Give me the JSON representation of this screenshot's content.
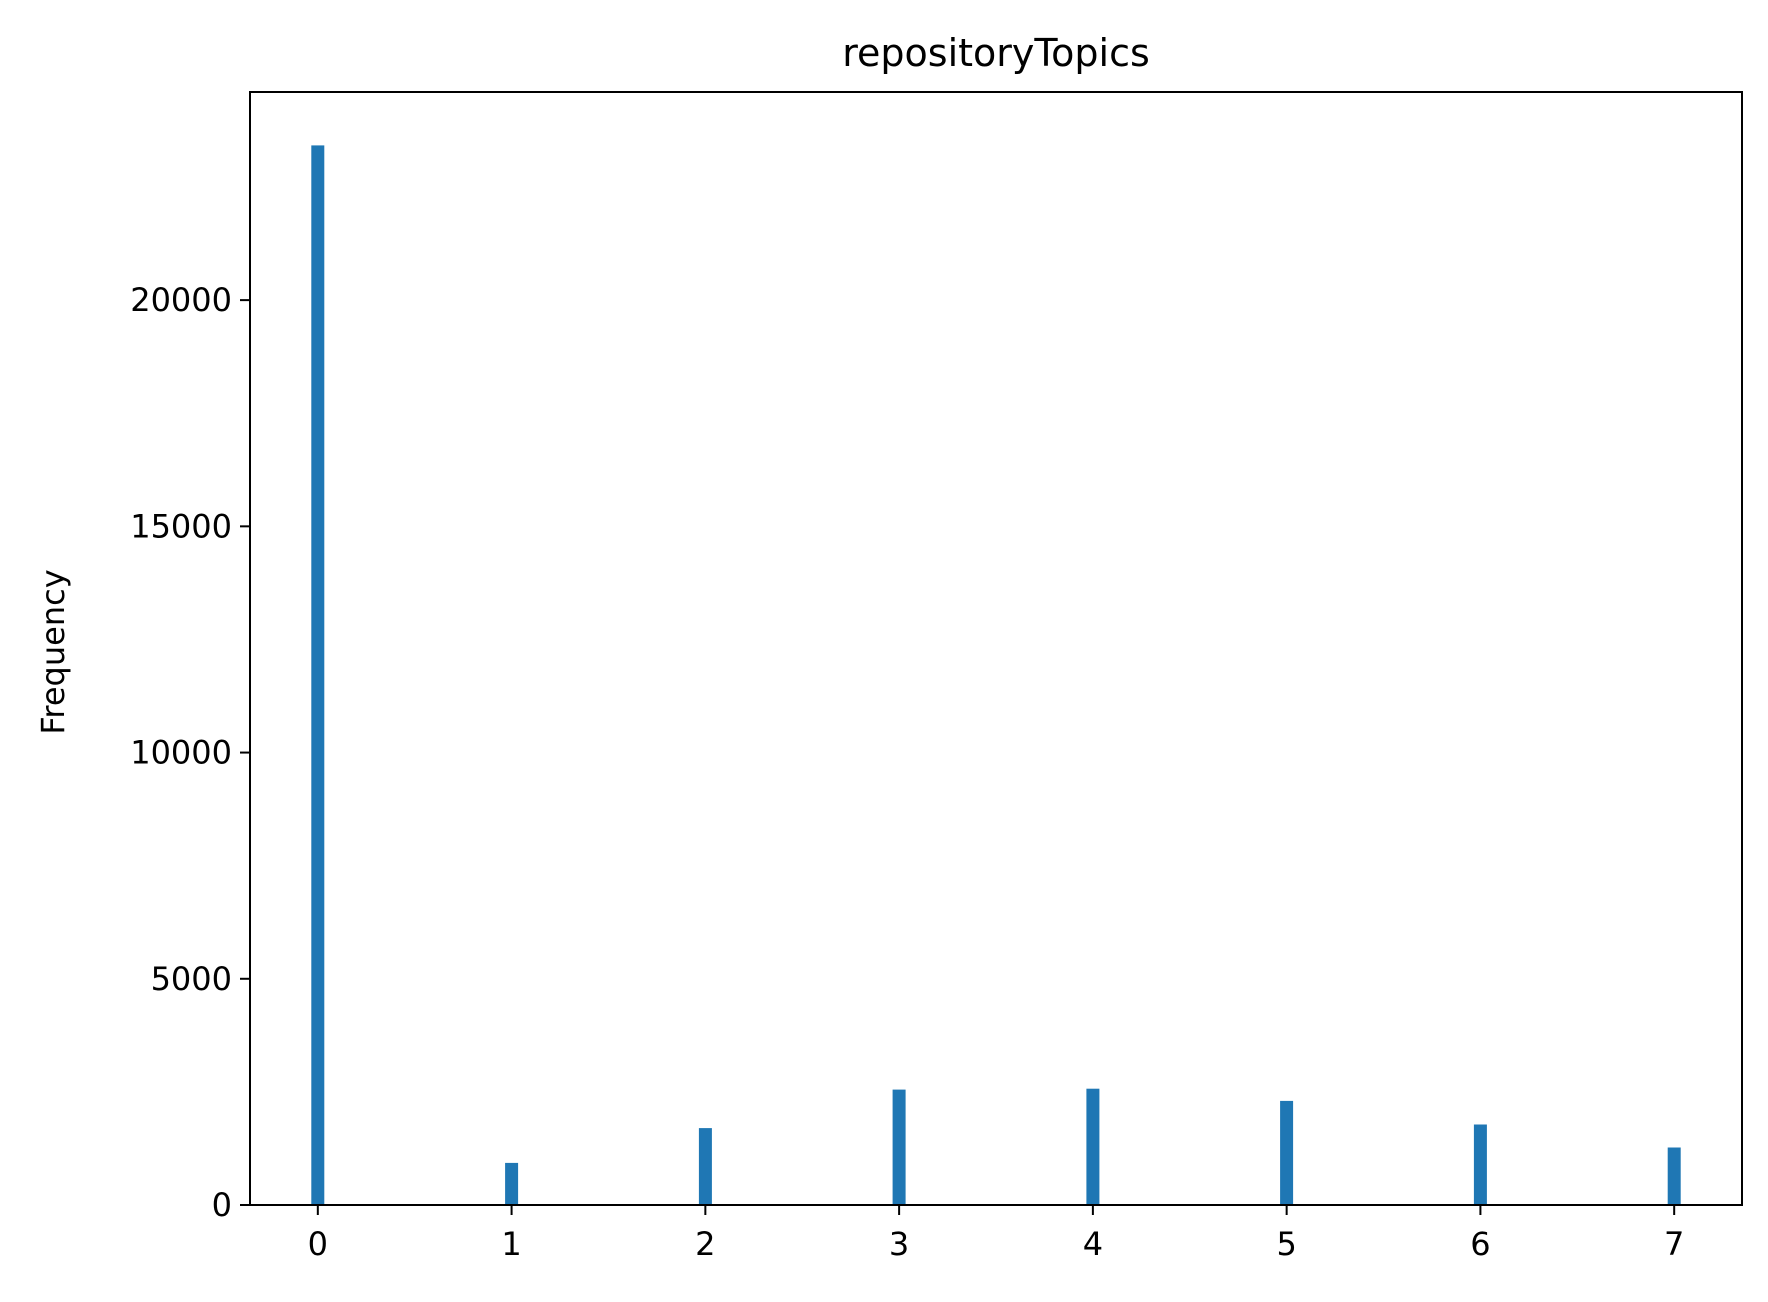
{
  "chart_data": {
    "type": "bar",
    "title": "repositoryTopics",
    "xlabel": "",
    "ylabel": "Frequency",
    "x": [
      0,
      1,
      2,
      3,
      4,
      5,
      6,
      7
    ],
    "values": [
      23420,
      930,
      1700,
      2550,
      2570,
      2300,
      1780,
      1270
    ],
    "xlim": [
      -0.35,
      7.35
    ],
    "ylim": [
      0,
      24600
    ],
    "x_ticks": [
      0,
      1,
      2,
      3,
      4,
      5,
      6,
      7
    ],
    "y_ticks": [
      0,
      5000,
      10000,
      15000,
      20000
    ],
    "bar_color": "#1f77b4",
    "grid": false,
    "legend": "none"
  }
}
